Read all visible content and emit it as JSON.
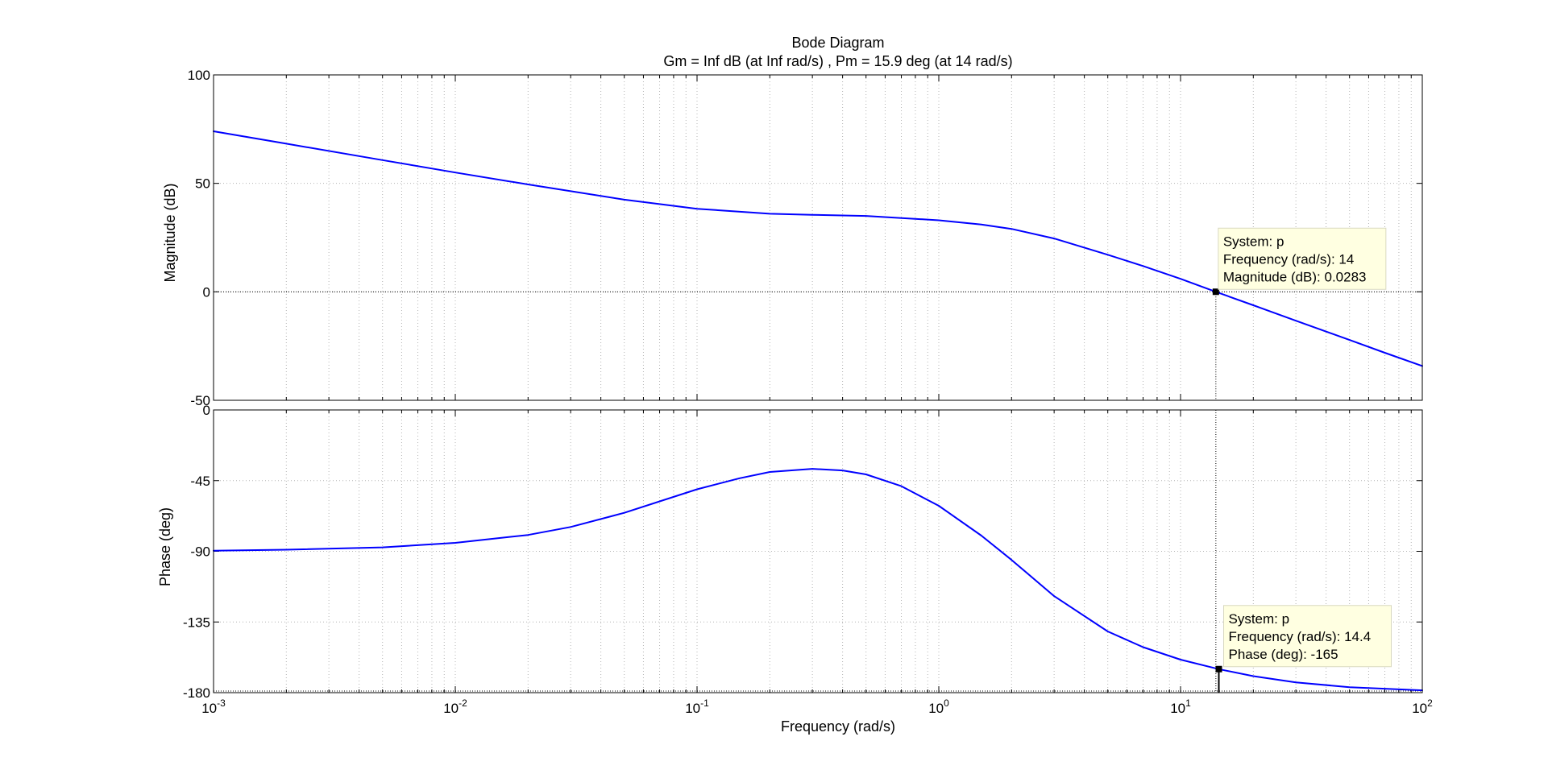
{
  "chart_data": {
    "type": "line",
    "title": "Bode Diagram",
    "subtitle": "Gm = Inf dB (at Inf rad/s) ,  Pm = 15.9 deg (at 14 rad/s)",
    "xlabel": "Frequency  (rad/s)",
    "x_scale": "log",
    "xlim": [
      0.001,
      100
    ],
    "x_ticks": [
      {
        "base": "10",
        "exp": "-3"
      },
      {
        "base": "10",
        "exp": "-2"
      },
      {
        "base": "10",
        "exp": "-1"
      },
      {
        "base": "10",
        "exp": "0"
      },
      {
        "base": "10",
        "exp": "1"
      },
      {
        "base": "10",
        "exp": "2"
      }
    ],
    "grid": true,
    "line_color": "#0000ff",
    "magnitude": {
      "ylabel": "Magnitude (dB)",
      "ylim": [
        -50,
        100
      ],
      "yticks": [
        "100",
        "50",
        "0",
        "-50"
      ],
      "series": [
        {
          "x": [
            0.001,
            0.002,
            0.005,
            0.01,
            0.02,
            0.05,
            0.1,
            0.2,
            0.3,
            0.5,
            1,
            1.5,
            2,
            3,
            5,
            7,
            10,
            14,
            20,
            30,
            50,
            70,
            100
          ],
          "y": [
            74,
            68.3,
            60.7,
            55,
            49.5,
            42.5,
            38.3,
            36,
            35.5,
            35,
            33,
            31,
            29,
            24.6,
            17.1,
            11.9,
            6,
            0.0283,
            -6.2,
            -13.3,
            -22.2,
            -28.1,
            -34.2
          ]
        }
      ]
    },
    "phase": {
      "ylabel": "Phase (deg)",
      "ylim": [
        -180,
        0
      ],
      "yticks": [
        "0",
        "-45",
        "-90",
        "-135",
        "-180"
      ],
      "series": [
        {
          "x": [
            0.001,
            0.002,
            0.005,
            0.01,
            0.02,
            0.03,
            0.05,
            0.1,
            0.15,
            0.2,
            0.3,
            0.4,
            0.5,
            0.7,
            1,
            1.5,
            2,
            3,
            5,
            7,
            10,
            14.4,
            20,
            30,
            50,
            100
          ],
          "y": [
            -89.6,
            -89,
            -87.5,
            -84.6,
            -79.6,
            -74.5,
            -65.5,
            -50.5,
            -43.5,
            -39.5,
            -37.5,
            -38.5,
            -41,
            -48.5,
            -61,
            -80,
            -95.5,
            -118.5,
            -141,
            -151,
            -159,
            -165,
            -169.5,
            -173.5,
            -176.5,
            -178.5
          ]
        }
      ]
    },
    "datatips": [
      {
        "lines": [
          "System: p",
          "Frequency (rad/s): 14",
          "Magnitude (dB): 0.0283"
        ],
        "x": 14,
        "y": 0.0283,
        "panel": "magnitude"
      },
      {
        "lines": [
          "System: p",
          "Frequency (rad/s): 14.4",
          "Phase (deg): -165"
        ],
        "x": 14.4,
        "y": -165,
        "panel": "phase"
      }
    ]
  }
}
